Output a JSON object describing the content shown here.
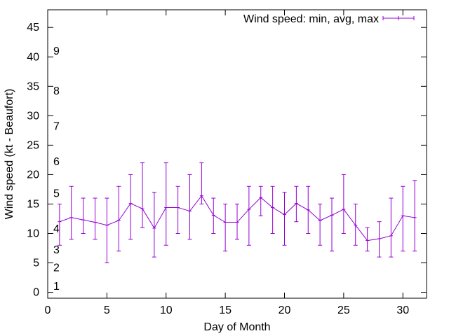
{
  "chart_data": {
    "type": "line",
    "title": "",
    "xlabel": "Day of Month",
    "ylabel": "Wind speed (kt - Beaufort)",
    "xlim": [
      0,
      32
    ],
    "ylim": [
      -1,
      48
    ],
    "xticks": [
      0,
      5,
      10,
      15,
      20,
      25,
      30
    ],
    "yticks": [
      0,
      5,
      10,
      15,
      20,
      25,
      30,
      35,
      40,
      45
    ],
    "grid": false,
    "legend_position": "top-right",
    "series": [
      {
        "name": "Wind speed: min, avg, max",
        "color": "#9400d3",
        "style": "line with min-max error bars",
        "x": [
          1,
          2,
          3,
          4,
          5,
          6,
          7,
          8,
          9,
          10,
          11,
          12,
          13,
          14,
          15,
          16,
          17,
          18,
          19,
          20,
          21,
          22,
          23,
          24,
          25,
          26,
          27,
          28,
          29,
          30,
          31
        ],
        "avg": [
          12.0,
          12.7,
          12.3,
          11.9,
          11.4,
          12.2,
          15.1,
          14.2,
          10.9,
          14.4,
          14.4,
          13.8,
          16.4,
          13.1,
          11.9,
          11.9,
          14.1,
          16.1,
          14.4,
          13.2,
          15.1,
          14.0,
          12.2,
          13.1,
          14.1,
          11.4,
          8.8,
          9.1,
          9.6,
          13.0,
          12.7
        ],
        "min": [
          8,
          9,
          10,
          9,
          5,
          7,
          9,
          11,
          6,
          8,
          10,
          9,
          15,
          10,
          7,
          9,
          8,
          13,
          10,
          8,
          12,
          10,
          8,
          7,
          10,
          8,
          7,
          6,
          6,
          7,
          7
        ],
        "max": [
          15,
          18,
          16,
          16,
          16,
          18,
          20,
          22,
          17,
          22,
          18,
          20,
          22,
          16,
          15,
          15,
          18,
          18,
          18,
          17,
          18,
          18,
          15,
          16,
          20,
          15,
          11,
          12,
          16,
          18,
          19
        ]
      }
    ],
    "annotations": {
      "beaufort_scale": [
        {
          "label": "1",
          "y": 1
        },
        {
          "label": "2",
          "y": 4.2
        },
        {
          "label": "3",
          "y": 7.2
        },
        {
          "label": "4",
          "y": 10.8
        },
        {
          "label": "5",
          "y": 16.8
        },
        {
          "label": "6",
          "y": 22.2
        },
        {
          "label": "7",
          "y": 28.2
        },
        {
          "label": "8",
          "y": 34.2
        },
        {
          "label": "9",
          "y": 41.0
        }
      ]
    }
  }
}
